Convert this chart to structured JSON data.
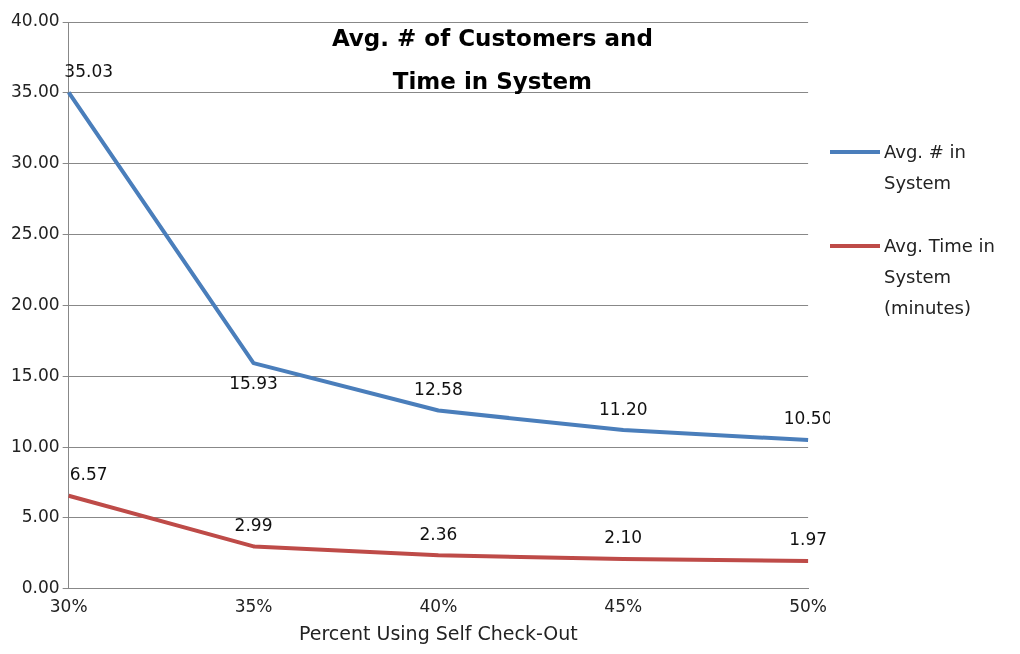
{
  "chart_data": {
    "type": "line",
    "title": "Avg. # of Customers and Time in System",
    "xlabel": "Percent Using Self Check-Out",
    "categories": [
      "30%",
      "35%",
      "40%",
      "45%",
      "50%"
    ],
    "series": [
      {
        "name": "Avg. # in System",
        "color": "#4a7ebb",
        "values": [
          35.03,
          15.93,
          12.58,
          11.2,
          10.5
        ],
        "value_labels": [
          "35.03",
          "15.93",
          "12.58",
          "11.20",
          "10.50"
        ]
      },
      {
        "name": "Avg. Time in System (minutes)",
        "color": "#be4b48",
        "values": [
          6.57,
          2.99,
          2.36,
          2.1,
          1.97
        ],
        "value_labels": [
          "6.57",
          "2.99",
          "2.36",
          "2.10",
          "1.97"
        ]
      }
    ],
    "ylim": [
      0,
      40
    ],
    "yticks": [
      {
        "value": 0,
        "label": "0.00"
      },
      {
        "value": 5,
        "label": "5.00"
      },
      {
        "value": 10,
        "label": "10.00"
      },
      {
        "value": 15,
        "label": "15.00"
      },
      {
        "value": 20,
        "label": "20.00"
      },
      {
        "value": 25,
        "label": "25.00"
      },
      {
        "value": 30,
        "label": "30.00"
      },
      {
        "value": 35,
        "label": "35.00"
      },
      {
        "value": 40,
        "label": "40.00"
      }
    ],
    "grid": "y",
    "legend": "right",
    "marker": "none",
    "line_style": "solid"
  }
}
